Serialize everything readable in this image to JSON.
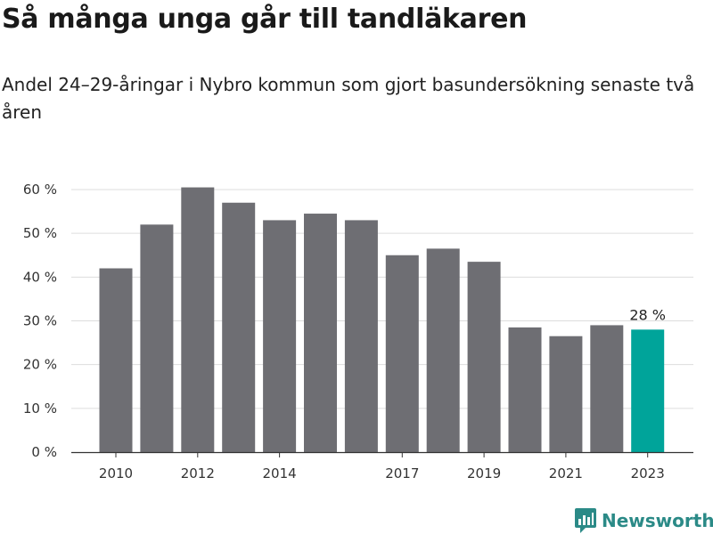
{
  "title": "Så många unga går till tandläkaren",
  "subtitle": "Andel 24–29-åringar i Nybro kommun som gjort basundersökning senaste två åren",
  "brand": {
    "name": "Newsworthy",
    "icon": "newsworthy-logo-icon"
  },
  "colors": {
    "bar": "#6e6e73",
    "highlight": "#00a49a",
    "grid": "#dddddd",
    "axis": "#333333"
  },
  "chart_data": {
    "type": "bar",
    "title": "Så många unga går till tandläkaren",
    "subtitle": "Andel 24–29-åringar i Nybro kommun som gjort basundersökning senaste två åren",
    "xlabel": "",
    "ylabel": "",
    "categories": [
      "2010",
      "2011",
      "2012",
      "2013",
      "2014",
      "2015",
      "2016",
      "2017",
      "2018",
      "2019",
      "2020",
      "2021",
      "2022",
      "2023"
    ],
    "values": [
      42,
      52,
      60.5,
      57,
      53,
      54.5,
      53,
      45,
      46.5,
      43.5,
      28.5,
      26.5,
      29,
      28
    ],
    "x_tick_labels": [
      "2010",
      "2012",
      "2014",
      "2017",
      "2019",
      "2021",
      "2023"
    ],
    "y_ticks": [
      0,
      10,
      20,
      30,
      40,
      50,
      60
    ],
    "y_tick_labels": [
      "0 %",
      "10 %",
      "20 %",
      "30 %",
      "40 %",
      "50 %",
      "60 %"
    ],
    "ylim": [
      0,
      60
    ],
    "grid": true,
    "highlight_category": "2023",
    "annotations": [
      {
        "category": "2023",
        "text": "28 %"
      }
    ]
  }
}
